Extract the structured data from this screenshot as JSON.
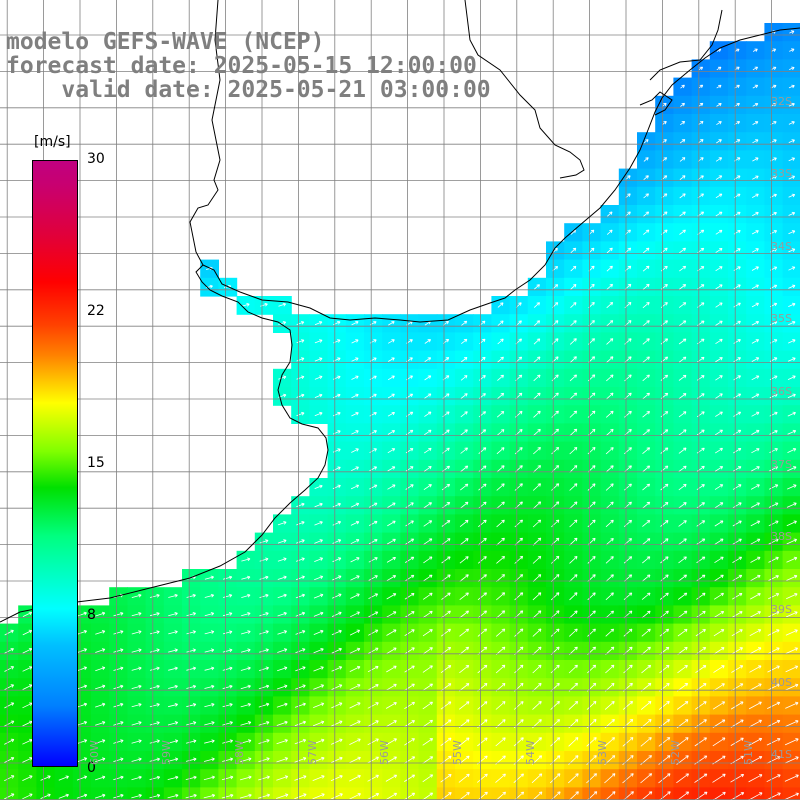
{
  "title": {
    "line1": "modelo GEFS-WAVE (NCEP)",
    "line2": "forecast date: 2025-05-15 12:00:00",
    "line3": "    valid date: 2025-05-21 03:00:00"
  },
  "colorbar": {
    "unit": "[m/s]",
    "ticks": [
      "30",
      "22",
      "15",
      "8",
      "0"
    ],
    "tick_values": [
      30,
      22,
      15,
      8,
      0
    ],
    "min": 0,
    "max": 30
  },
  "lat_labels": [
    "32S",
    "33S",
    "34S",
    "35S",
    "36S",
    "37S",
    "38S",
    "39S",
    "40S",
    "41S"
  ],
  "lon_labels": [
    "60W",
    "59W",
    "58W",
    "57W",
    "56W",
    "55W",
    "54W",
    "53W",
    "52W",
    "51W"
  ],
  "colors": {
    "land": "#ffffff",
    "coast": "#000000",
    "grid": "#808080",
    "arrows": "#ffffff",
    "title": "#7f7f7f"
  }
}
